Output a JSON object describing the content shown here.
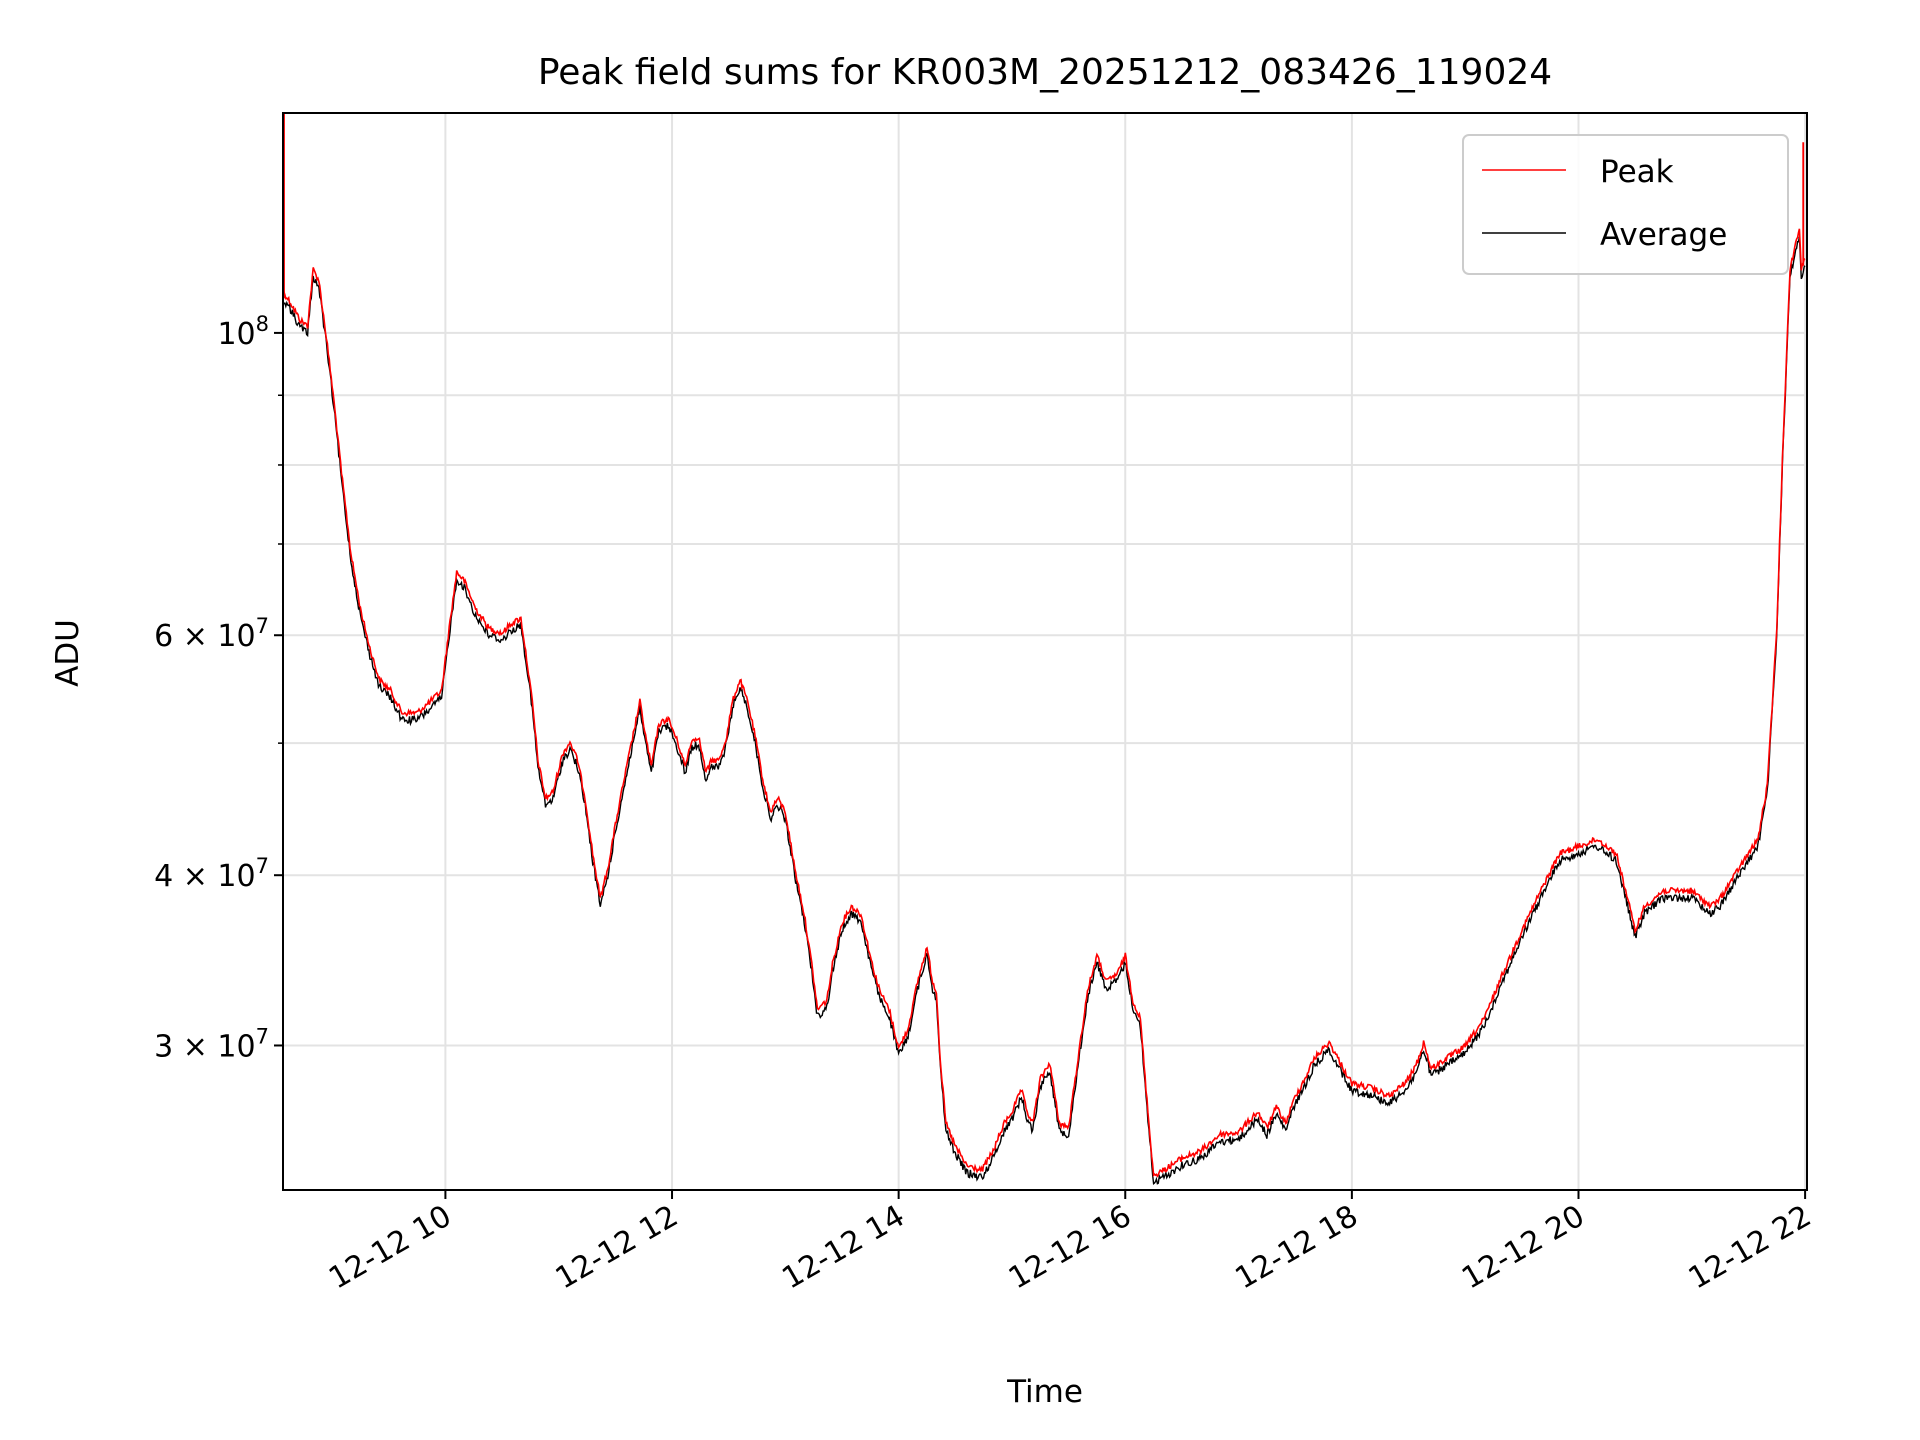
{
  "chart_data": {
    "type": "line",
    "title": "Peak field sums for KR003M_20251212_083426_119024",
    "xlabel": "Time",
    "ylabel": "ADU",
    "x_ticks": [
      "12-12 10",
      "12-12 12",
      "12-12 14",
      "12-12 16",
      "12-12 18",
      "12-12 20",
      "12-12 22"
    ],
    "y_ticks": [
      {
        "value": 30000000,
        "mant": "3",
        "exp": "7"
      },
      {
        "value": 40000000,
        "mant": "4",
        "exp": "7"
      },
      {
        "value": 60000000,
        "mant": "6",
        "exp": "7"
      },
      {
        "value": 100000000,
        "mant": "",
        "exp": "8"
      }
    ],
    "x_range": [
      "12-12 08:34",
      "12-12 22:01"
    ],
    "ylim": [
      23500000,
      145000000
    ],
    "y_scale": "log",
    "grid": true,
    "legend_position": "upper right",
    "series": [
      {
        "name": "Peak",
        "color": "#ff0000"
      },
      {
        "name": "Average",
        "color": "#000000"
      }
    ],
    "average_points": [
      [
        "08:34",
        106000000
      ],
      [
        "08:38",
        104000000
      ],
      [
        "08:43",
        101000000
      ],
      [
        "08:47",
        100000000
      ],
      [
        "08:50",
        110000000
      ],
      [
        "08:53",
        108000000
      ],
      [
        "08:57",
        98000000
      ],
      [
        "09:01",
        88000000
      ],
      [
        "09:05",
        78000000
      ],
      [
        "09:10",
        68000000
      ],
      [
        "09:15",
        62000000
      ],
      [
        "09:20",
        58000000
      ],
      [
        "09:25",
        55000000
      ],
      [
        "09:31",
        54000000
      ],
      [
        "09:37",
        52000000
      ],
      [
        "09:45",
        52000000
      ],
      [
        "09:52",
        53000000
      ],
      [
        "09:58",
        54000000
      ],
      [
        "10:02",
        60000000
      ],
      [
        "10:06",
        66000000
      ],
      [
        "10:10",
        65000000
      ],
      [
        "10:16",
        62000000
      ],
      [
        "10:23",
        60000000
      ],
      [
        "10:30",
        59500000
      ],
      [
        "10:35",
        60500000
      ],
      [
        "10:40",
        61000000
      ],
      [
        "10:43",
        57000000
      ],
      [
        "10:46",
        53000000
      ],
      [
        "10:49",
        48000000
      ],
      [
        "10:53",
        45000000
      ],
      [
        "10:57",
        45500000
      ],
      [
        "11:02",
        48500000
      ],
      [
        "11:06",
        49500000
      ],
      [
        "11:10",
        48000000
      ],
      [
        "11:14",
        45000000
      ],
      [
        "11:18",
        41000000
      ],
      [
        "11:22",
        38000000
      ],
      [
        "11:26",
        40000000
      ],
      [
        "11:30",
        43000000
      ],
      [
        "11:34",
        46000000
      ],
      [
        "11:38",
        49000000
      ],
      [
        "11:43",
        53000000
      ],
      [
        "11:46",
        50000000
      ],
      [
        "11:49",
        47500000
      ],
      [
        "11:53",
        51000000
      ],
      [
        "11:58",
        51500000
      ],
      [
        "12:03",
        49500000
      ],
      [
        "12:07",
        47500000
      ],
      [
        "12:10",
        49500000
      ],
      [
        "12:14",
        50000000
      ],
      [
        "12:18",
        47000000
      ],
      [
        "12:21",
        48000000
      ],
      [
        "12:25",
        48000000
      ],
      [
        "12:29",
        50000000
      ],
      [
        "12:32",
        53000000
      ],
      [
        "12:36",
        55000000
      ],
      [
        "12:40",
        53000000
      ],
      [
        "12:44",
        50000000
      ],
      [
        "12:48",
        46500000
      ],
      [
        "12:52",
        44000000
      ],
      [
        "12:56",
        45000000
      ],
      [
        "13:00",
        44000000
      ],
      [
        "13:05",
        40000000
      ],
      [
        "13:10",
        37000000
      ],
      [
        "13:14",
        34000000
      ],
      [
        "13:17",
        31500000
      ],
      [
        "13:22",
        32000000
      ],
      [
        "13:25",
        34000000
      ],
      [
        "13:30",
        36500000
      ],
      [
        "13:35",
        37500000
      ],
      [
        "13:40",
        37000000
      ],
      [
        "13:46",
        34000000
      ],
      [
        "13:50",
        32500000
      ],
      [
        "13:55",
        31500000
      ],
      [
        "14:00",
        29500000
      ],
      [
        "14:05",
        30500000
      ],
      [
        "14:10",
        33000000
      ],
      [
        "14:15",
        35000000
      ],
      [
        "14:18",
        33000000
      ],
      [
        "14:20",
        32500000
      ],
      [
        "14:22",
        29000000
      ],
      [
        "14:25",
        26000000
      ],
      [
        "14:30",
        25000000
      ],
      [
        "14:36",
        24200000
      ],
      [
        "14:44",
        24000000
      ],
      [
        "14:50",
        24800000
      ],
      [
        "14:56",
        26000000
      ],
      [
        "15:00",
        26500000
      ],
      [
        "15:05",
        27500000
      ],
      [
        "15:08",
        26500000
      ],
      [
        "15:11",
        26000000
      ],
      [
        "15:15",
        28000000
      ],
      [
        "15:20",
        28800000
      ],
      [
        "15:25",
        26000000
      ],
      [
        "15:30",
        25800000
      ],
      [
        "15:35",
        29000000
      ],
      [
        "15:40",
        32500000
      ],
      [
        "15:45",
        34500000
      ],
      [
        "15:50",
        33000000
      ],
      [
        "15:56",
        33500000
      ],
      [
        "16:00",
        34500000
      ],
      [
        "16:04",
        32000000
      ],
      [
        "16:08",
        31000000
      ],
      [
        "16:12",
        26500000
      ],
      [
        "16:15",
        23800000
      ],
      [
        "16:20",
        24000000
      ],
      [
        "16:30",
        24500000
      ],
      [
        "16:40",
        24800000
      ],
      [
        "16:50",
        25500000
      ],
      [
        "17:00",
        25600000
      ],
      [
        "17:10",
        26500000
      ],
      [
        "17:15",
        25800000
      ],
      [
        "17:20",
        26700000
      ],
      [
        "17:25",
        26000000
      ],
      [
        "17:30",
        27200000
      ],
      [
        "17:35",
        28000000
      ],
      [
        "17:40",
        29000000
      ],
      [
        "17:48",
        29800000
      ],
      [
        "17:55",
        28600000
      ],
      [
        "18:00",
        27800000
      ],
      [
        "18:10",
        27600000
      ],
      [
        "18:20",
        27200000
      ],
      [
        "18:30",
        28000000
      ],
      [
        "18:35",
        28900000
      ],
      [
        "18:38",
        29800000
      ],
      [
        "18:42",
        28500000
      ],
      [
        "18:50",
        29000000
      ],
      [
        "19:00",
        29600000
      ],
      [
        "19:10",
        31000000
      ],
      [
        "19:20",
        33500000
      ],
      [
        "19:30",
        36000000
      ],
      [
        "19:40",
        38500000
      ],
      [
        "19:50",
        41000000
      ],
      [
        "20:00",
        41500000
      ],
      [
        "20:10",
        42000000
      ],
      [
        "20:20",
        41000000
      ],
      [
        "20:25",
        38500000
      ],
      [
        "20:30",
        36000000
      ],
      [
        "20:35",
        37500000
      ],
      [
        "20:45",
        38500000
      ],
      [
        "21:00",
        38500000
      ],
      [
        "21:10",
        37500000
      ],
      [
        "21:15",
        38000000
      ],
      [
        "21:25",
        40000000
      ],
      [
        "21:35",
        42000000
      ],
      [
        "21:40",
        46000000
      ],
      [
        "21:45",
        60000000
      ],
      [
        "21:48",
        80000000
      ],
      [
        "21:52",
        110000000
      ],
      [
        "21:55",
        115000000
      ],
      [
        "21:57",
        118000000
      ],
      [
        "21:58",
        110000000
      ],
      [
        "22:00",
        112000000
      ]
    ]
  }
}
